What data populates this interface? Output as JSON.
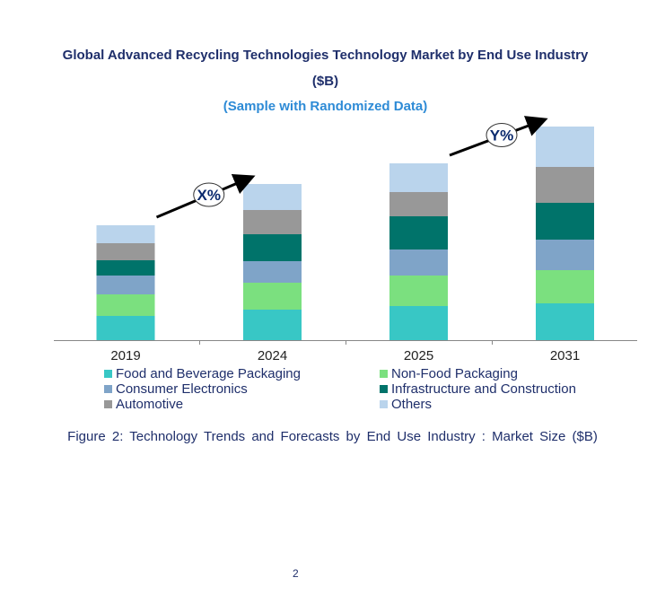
{
  "chart_data": {
    "type": "bar",
    "stacked": true,
    "title": "Global Advanced Recycling Technologies Technology Market by End Use Industry ($B)",
    "title_line1": "Global Advanced Recycling Technologies Technology Market by End Use Industry",
    "title_line2": "($B)",
    "subtitle": "(Sample with Randomized Data)",
    "categories": [
      "2019",
      "2024",
      "2025",
      "2031"
    ],
    "series": [
      {
        "name": "Food and Beverage Packaging",
        "color": "#38c7c5",
        "values": [
          27,
          34,
          38,
          41
        ]
      },
      {
        "name": "Non-Food Packaging",
        "color": "#7be07f",
        "values": [
          24,
          30,
          34,
          37
        ]
      },
      {
        "name": "Consumer Electronics",
        "color": "#7fa4c8",
        "values": [
          21,
          24,
          29,
          34
        ]
      },
      {
        "name": "Infrastructure and Construction",
        "color": "#00736a",
        "values": [
          17,
          30,
          37,
          41
        ]
      },
      {
        "name": "Automotive",
        "color": "#989898",
        "values": [
          19,
          27,
          27,
          40
        ]
      },
      {
        "name": "Others",
        "color": "#bad4ec",
        "values": [
          20,
          29,
          32,
          45
        ]
      }
    ],
    "annotations": [
      {
        "label": "X%",
        "from": "2019",
        "to": "2024"
      },
      {
        "label": "Y%",
        "from": "2025",
        "to": "2031"
      }
    ],
    "grid": false,
    "y_axis_shown": false,
    "legend_position": "bottom"
  },
  "caption": "Figure 2: Technology  Trends  and Forecasts by  End Use Industry   : Market Size ($B)",
  "page_number": "2"
}
